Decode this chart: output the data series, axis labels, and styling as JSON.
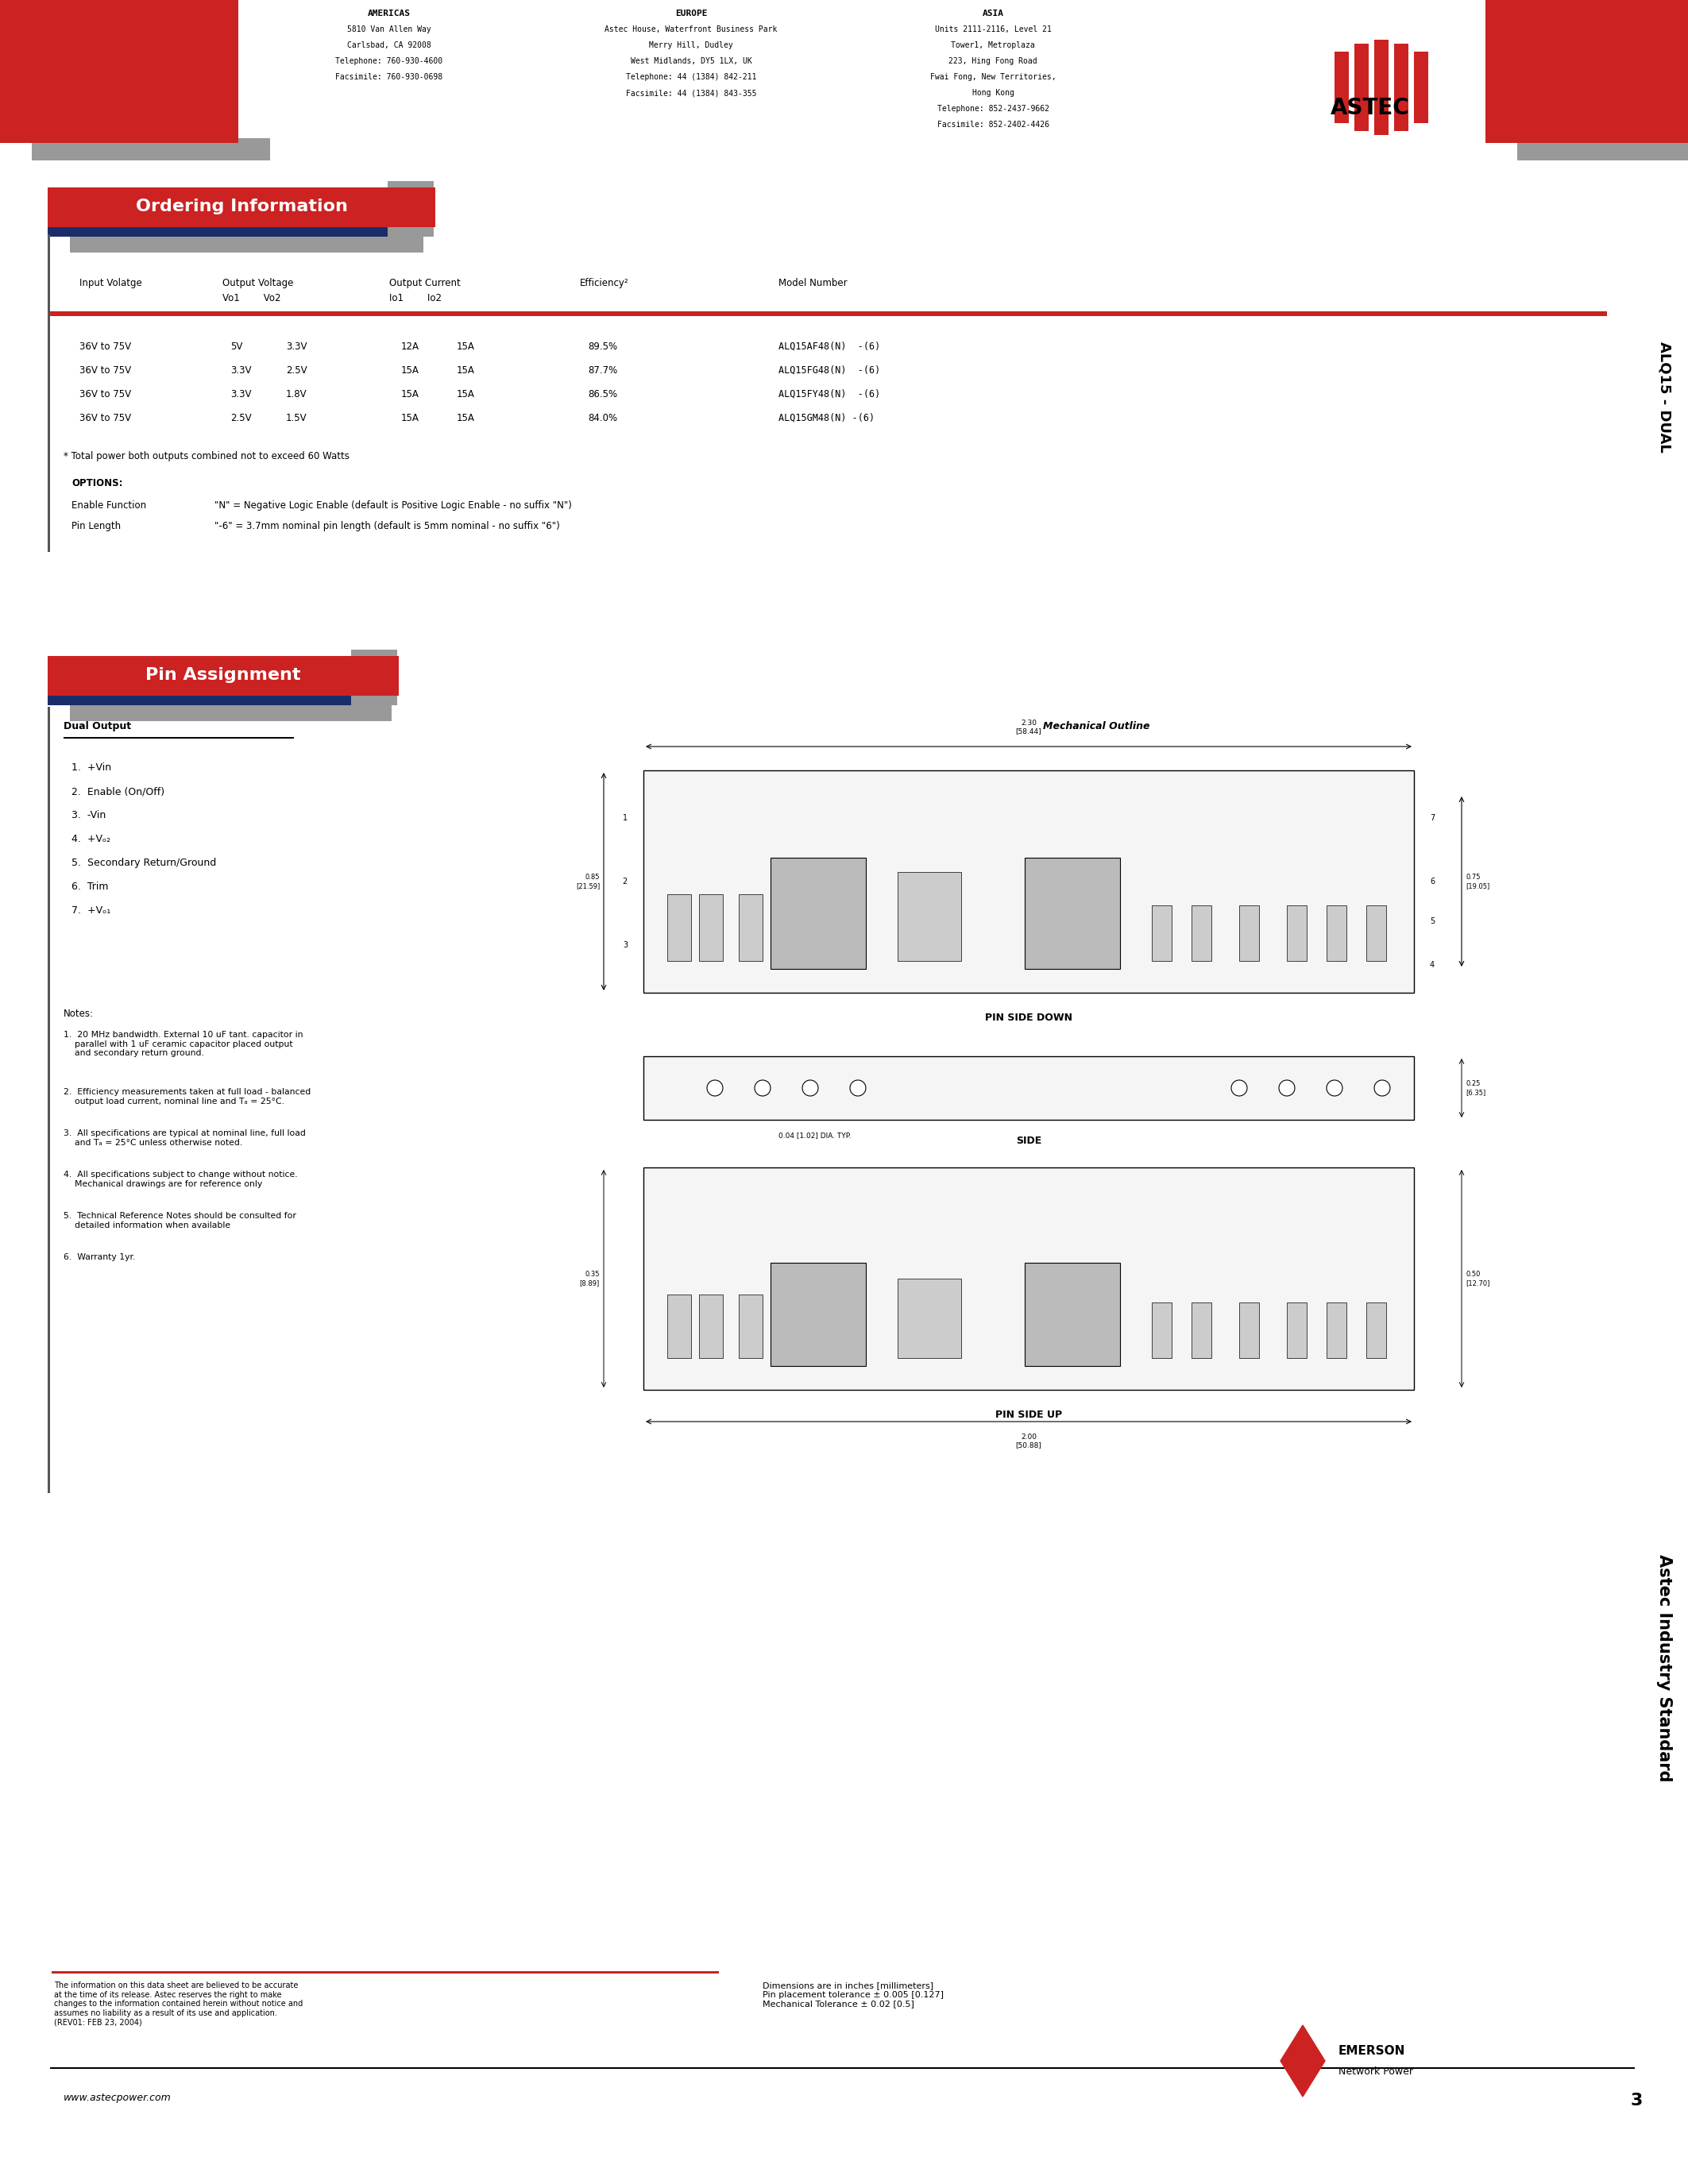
{
  "page_bg": "#ffffff",
  "red_color": "#cc2222",
  "navy_color": "#1a2d6b",
  "gray_color": "#999999",
  "dark_gray": "#555555",
  "black": "#000000",
  "header": {
    "americas_title": "AMERICAS",
    "europe_title": "EUROPE",
    "asia_title": "ASIA",
    "americas_lines": [
      "5810 Van Allen Way",
      "Carlsbad, CA 92008",
      "Telephone: 760-930-4600",
      "Facsimile: 760-930-0698"
    ],
    "europe_lines": [
      "Astec House, Waterfront Business Park",
      "Merry Hill, Dudley",
      "West Midlands, DY5 1LX, UK",
      "Telephone: 44 (1384) 842-211",
      "Facsimile: 44 (1384) 843-355"
    ],
    "asia_lines": [
      "Units 2111-2116, Level 21",
      "Tower1, Metroplaza",
      "223, Hing Fong Road",
      "Fwai Fong, New Territories,",
      "Hong Kong",
      "Telephone: 852-2437-9662",
      "Facsimile: 852-2402-4426"
    ]
  },
  "ordering_section": {
    "title": "Ordering Information",
    "rows": [
      [
        "36V to 75V",
        "5V",
        "3.3V",
        "12A",
        "15A",
        "89.5%",
        "ALQ15AF48(N)  -(6)"
      ],
      [
        "36V to 75V",
        "3.3V",
        "2.5V",
        "15A",
        "15A",
        "87.7%",
        "ALQ15FG48(N)  -(6)"
      ],
      [
        "36V to 75V",
        "3.3V",
        "1.8V",
        "15A",
        "15A",
        "86.5%",
        "ALQ15FY48(N)  -(6)"
      ],
      [
        "36V to 75V",
        "2.5V",
        "1.5V",
        "15A",
        "15A",
        "84.0%",
        "ALQ15GM48(N) -(6)"
      ]
    ],
    "footnote": "* Total power both outputs combined not to exceed 60 Watts",
    "options_title": "OPTIONS:",
    "options": [
      [
        "Enable Function",
        "\"N\" = Negative Logic Enable (default is Positive Logic Enable - no suffix \"N\")"
      ],
      [
        "Pin Length",
        "\"-6\" = 3.7mm nominal pin length (default is 5mm nominal - no suffix \"6\")"
      ]
    ]
  },
  "pin_section": {
    "title": "Pin Assignment",
    "dual_output_title": "Dual Output",
    "pins": [
      "1.  +Vin",
      "2.  Enable (On/Off)",
      "3.  -Vin",
      "4.  +Vₒ₂",
      "5.  Secondary Return/Ground",
      "6.  Trim",
      "7.  +Vₒ₁"
    ],
    "notes_title": "Notes:",
    "notes": [
      "1.  20 MHz bandwidth. External 10 uF tant. capacitor in\n    parallel with 1 uF ceramic capacitor placed output\n    and secondary return ground.",
      "2.  Efficiency measurements taken at full load - balanced\n    output load current, nominal line and Tₐ = 25°C.",
      "3.  All specifications are typical at nominal line, full load\n    and Tₐ = 25°C unless otherwise noted.",
      "4.  All specifications subject to change without notice.\n    Mechanical drawings are for reference only",
      "5.  Technical Reference Notes should be consulted for\n    detailed information when available",
      "6.  Warranty 1yr."
    ],
    "mech_title": "Mechanical Outline",
    "pin_side_down": "PIN SIDE DOWN",
    "side_label": "SIDE",
    "pin_side_up": "PIN SIDE UP"
  },
  "footer": {
    "disclaimer": "The information on this data sheet are believed to be accurate\nat the time of its release. Astec reserves the right to make\nchanges to the information contained herein without notice and\nassumes no liability as a result of its use and application.\n(REV01: FEB 23, 2004)",
    "dimensions_note": "Dimensions are in inches [millimeters]\nPin placement tolerance ± 0.005 [0.127]\nMechanical Tolerance ± 0.02 [0.5]",
    "website": "www.astecpower.com",
    "page_number": "3",
    "emerson_label": "EMERSON",
    "emerson_sub": "Network Power"
  },
  "side_label": "ALQ15 - DUAL",
  "side_label2": "Astec Industry Standard"
}
